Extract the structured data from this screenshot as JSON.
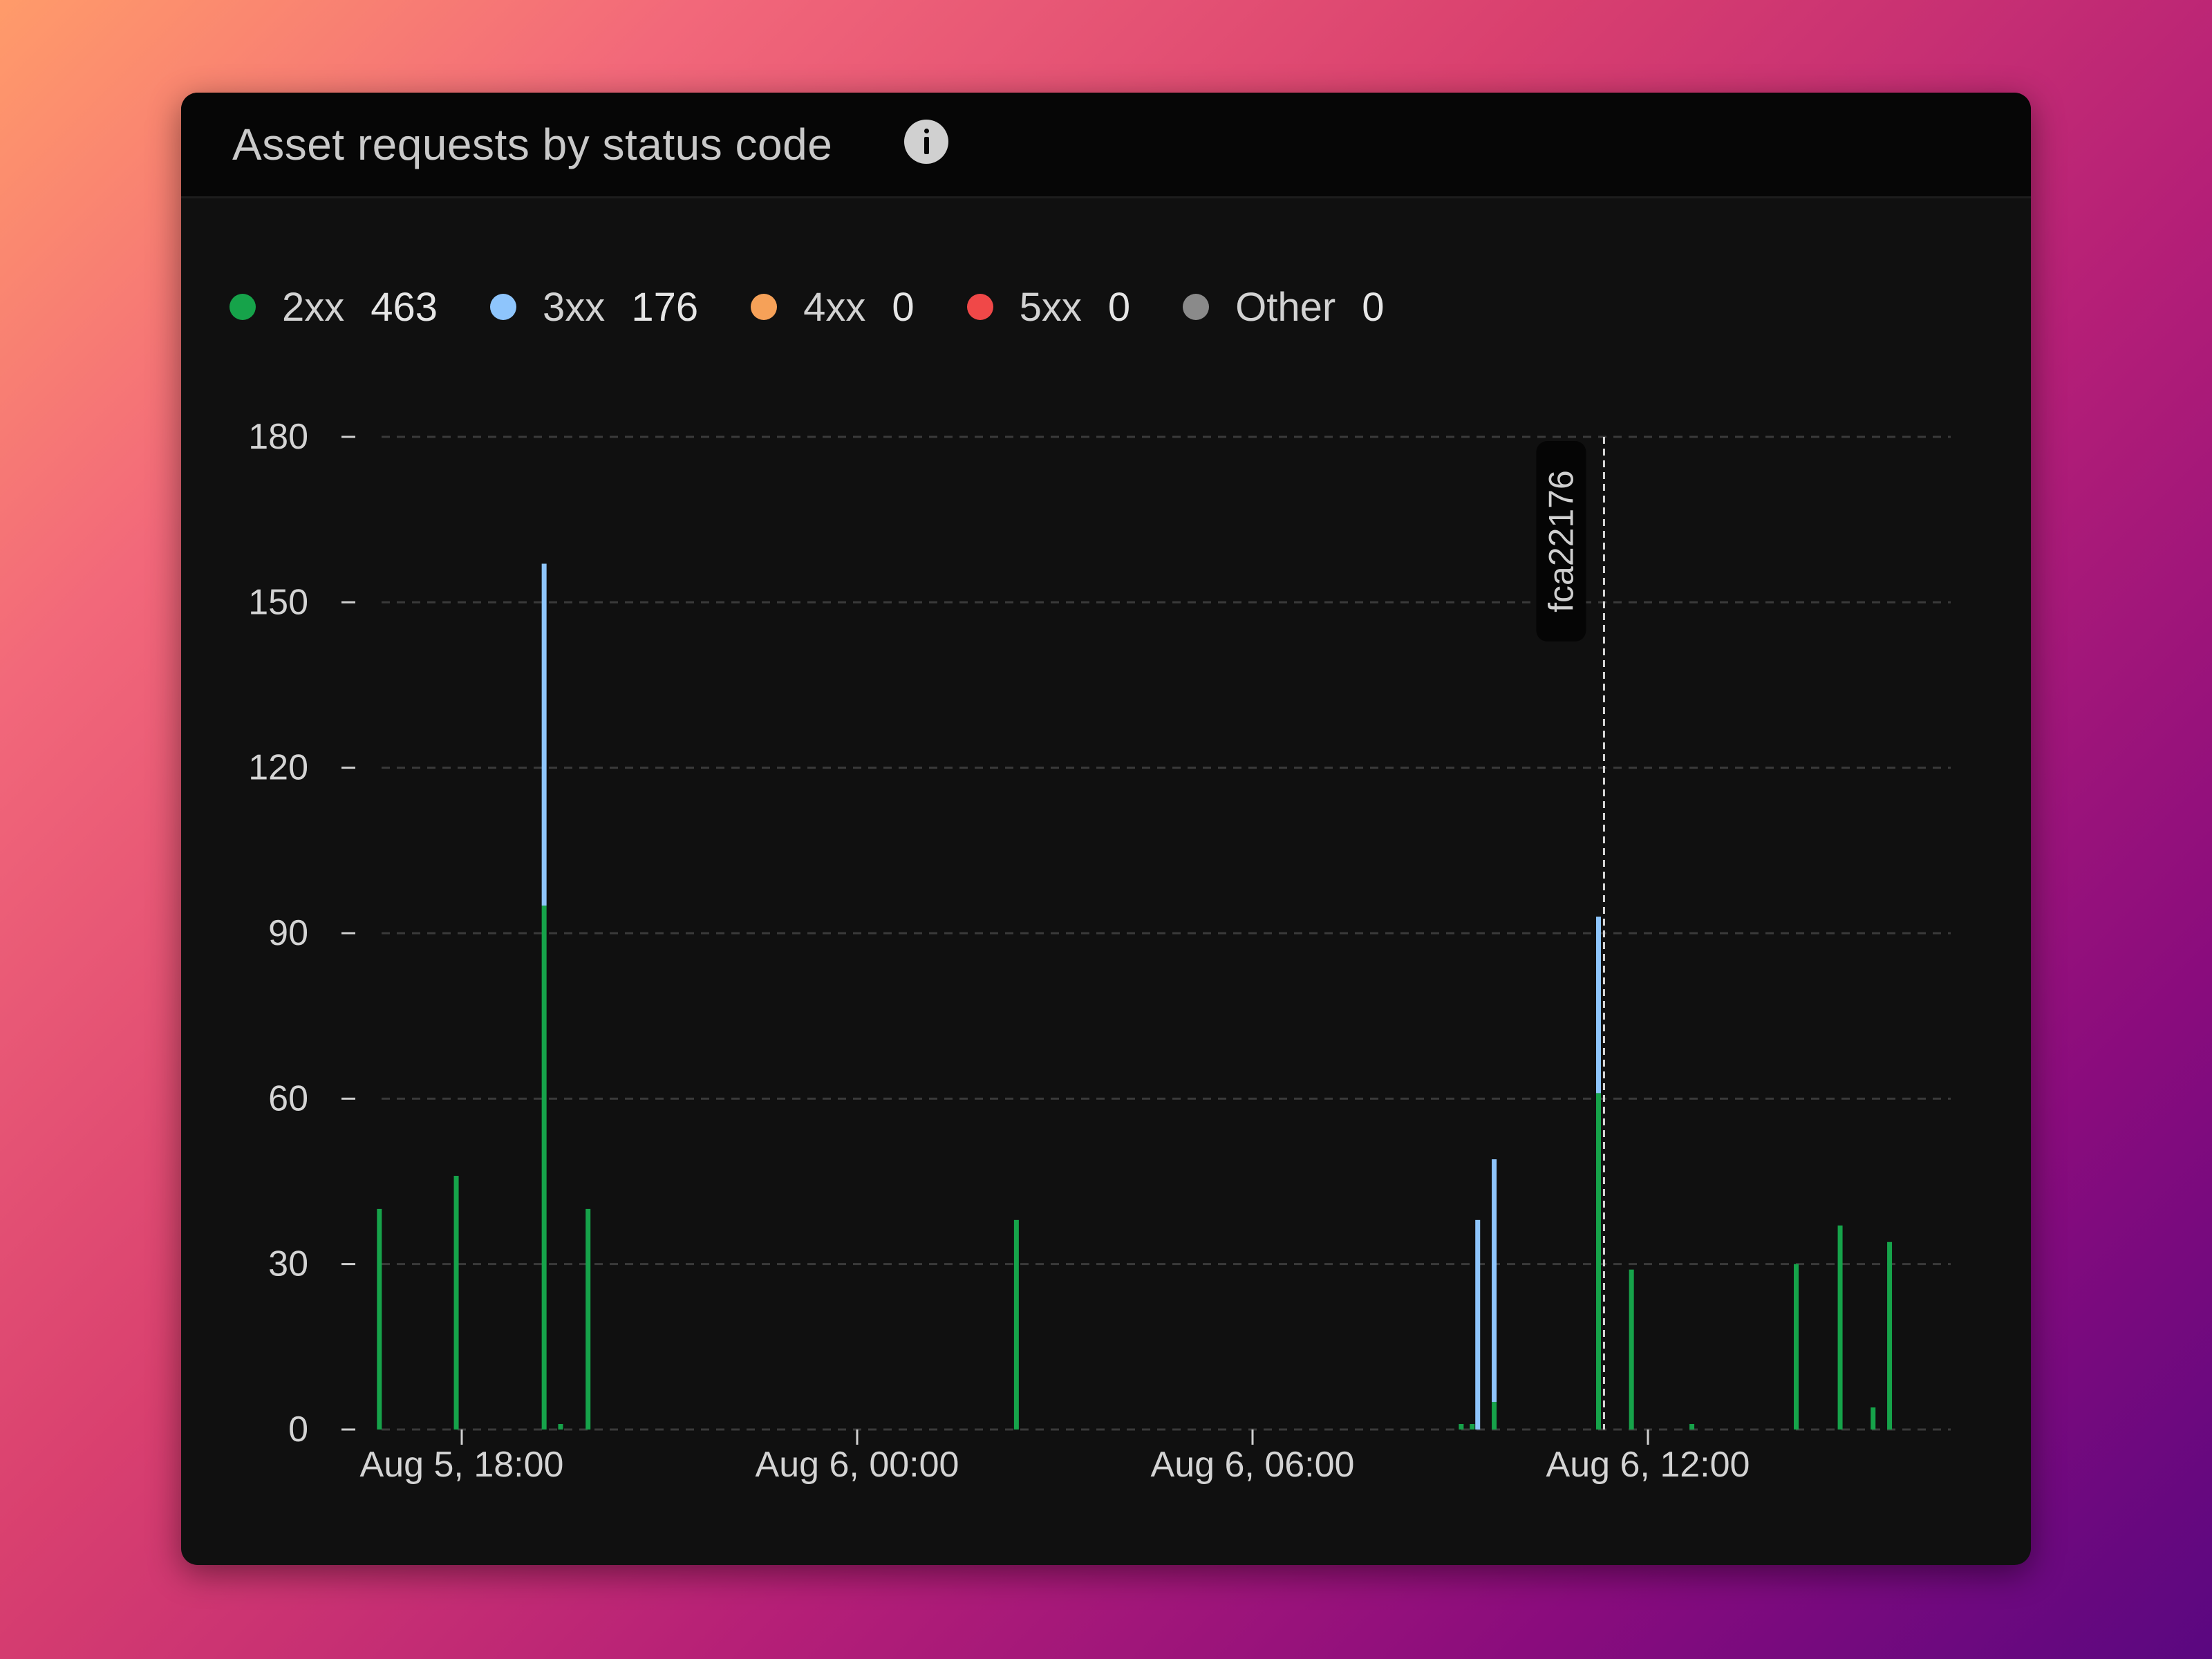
{
  "card": {
    "title": "Asset requests by status code",
    "info_icon": "info-icon"
  },
  "legend": [
    {
      "label": "2xx",
      "value": "463",
      "color": "#16a34a"
    },
    {
      "label": "3xx",
      "value": "176",
      "color": "#8ec5fc"
    },
    {
      "label": "4xx",
      "value": "0",
      "color": "#f6a158"
    },
    {
      "label": "5xx",
      "value": "0",
      "color": "#f04848"
    },
    {
      "label": "Other",
      "value": "0",
      "color": "#8a8a8a"
    }
  ],
  "chart_data": {
    "type": "bar",
    "stacked": true,
    "x_axis_type": "time",
    "title": "Asset requests by status code",
    "xlabel": "",
    "ylabel": "",
    "ylim": [
      0,
      180
    ],
    "yticks": [
      0,
      30,
      60,
      90,
      120,
      150,
      180
    ],
    "xticks": [
      {
        "label": "Aug 5, 18:00",
        "time": "Aug 5, 18:00"
      },
      {
        "label": "Aug 6, 00:00",
        "time": "Aug 6, 00:00"
      },
      {
        "label": "Aug 6, 06:00",
        "time": "Aug 6, 06:00"
      },
      {
        "label": "Aug 6, 12:00",
        "time": "Aug 6, 12:00"
      }
    ],
    "grid": true,
    "legend_position": "top-left",
    "series_colors": {
      "2xx": "#16a34a",
      "3xx": "#8ec5fc",
      "4xx": "#f6a158",
      "5xx": "#f04848",
      "Other": "#8a8a8a"
    },
    "bars": [
      {
        "time": "Aug 5, 16:45",
        "2xx": 40,
        "3xx": 0
      },
      {
        "time": "Aug 5, 17:55",
        "2xx": 46,
        "3xx": 0
      },
      {
        "time": "Aug 5, 19:15",
        "2xx": 95,
        "3xx": 62
      },
      {
        "time": "Aug 5, 19:30",
        "2xx": 1,
        "3xx": 0
      },
      {
        "time": "Aug 5, 19:55",
        "2xx": 40,
        "3xx": 0
      },
      {
        "time": "Aug 6, 02:25",
        "2xx": 38,
        "3xx": 0
      },
      {
        "time": "Aug 6, 09:10",
        "2xx": 1,
        "3xx": 0
      },
      {
        "time": "Aug 6, 09:20",
        "2xx": 1,
        "3xx": 0
      },
      {
        "time": "Aug 6, 09:25",
        "2xx": 0,
        "3xx": 38
      },
      {
        "time": "Aug 6, 09:40",
        "2xx": 5,
        "3xx": 44
      },
      {
        "time": "Aug 6, 11:15",
        "2xx": 61,
        "3xx": 32
      },
      {
        "time": "Aug 6, 11:45",
        "2xx": 29,
        "3xx": 0
      },
      {
        "time": "Aug 6, 12:40",
        "2xx": 1,
        "3xx": 0
      },
      {
        "time": "Aug 6, 14:15",
        "2xx": 30,
        "3xx": 0
      },
      {
        "time": "Aug 6, 14:55",
        "2xx": 37,
        "3xx": 0
      },
      {
        "time": "Aug 6, 15:25",
        "2xx": 4,
        "3xx": 0
      },
      {
        "time": "Aug 6, 15:40",
        "2xx": 34,
        "3xx": 0
      }
    ],
    "annotations": [
      {
        "label": "fca22176",
        "time": "Aug 6, 11:20"
      }
    ]
  }
}
